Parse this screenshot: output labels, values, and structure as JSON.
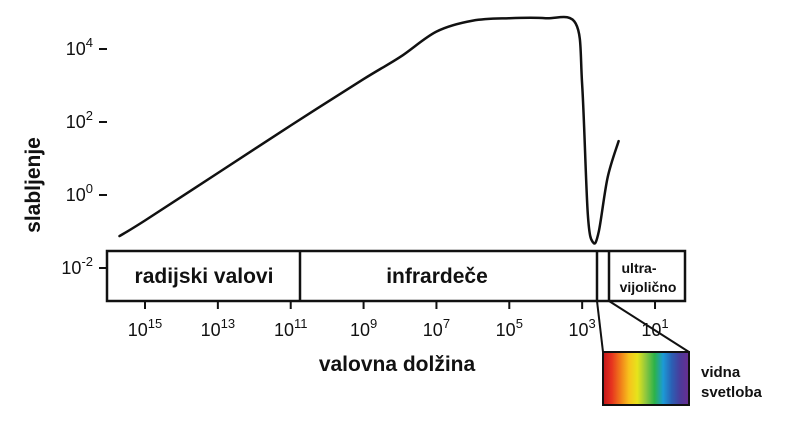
{
  "chart_data": {
    "type": "line",
    "title": "",
    "xlabel": "valovna dolžina",
    "ylabel": "slabljenje",
    "x_scale": "log",
    "y_scale": "log",
    "x_reversed": true,
    "y_ticks": [
      {
        "base": "10",
        "exp": "4",
        "value": 10000
      },
      {
        "base": "10",
        "exp": "2",
        "value": 100
      },
      {
        "base": "10",
        "exp": "0",
        "value": 1
      },
      {
        "base": "10",
        "exp": "-2",
        "value": 0.01
      }
    ],
    "x_ticks": [
      {
        "base": "10",
        "exp": "15",
        "value": 1000000000000000.0
      },
      {
        "base": "10",
        "exp": "13",
        "value": 10000000000000.0
      },
      {
        "base": "10",
        "exp": "11",
        "value": 100000000000.0
      },
      {
        "base": "10",
        "exp": "9",
        "value": 1000000000.0
      },
      {
        "base": "10",
        "exp": "7",
        "value": 10000000.0
      },
      {
        "base": "10",
        "exp": "5",
        "value": 100000.0
      },
      {
        "base": "10",
        "exp": "3",
        "value": 1000.0
      },
      {
        "base": "10",
        "exp": "1",
        "value": 10
      }
    ],
    "series": [
      {
        "points": [
          [
            5000000000000000.0,
            0.075
          ],
          [
            1000000000000000.0,
            0.2
          ],
          [
            10000000000000.0,
            4
          ],
          [
            100000000000.0,
            80
          ],
          [
            1000000000.0,
            1500
          ],
          [
            100000000.0,
            6000
          ],
          [
            10000000.0,
            30000
          ],
          [
            1000000.0,
            60000
          ],
          [
            100000.0,
            70000
          ],
          [
            10000.0,
            70000
          ],
          [
            1500.0,
            50000
          ],
          [
            1000.0,
            1000
          ],
          [
            700,
            0.3
          ],
          [
            500,
            0.05
          ],
          [
            350,
            0.1
          ],
          [
            200,
            3
          ],
          [
            100,
            30
          ]
        ]
      }
    ],
    "bands": [
      {
        "label": "radijski valovi"
      },
      {
        "label": "infrardeče"
      },
      {
        "label_lines": [
          "ultra-",
          "vijolično"
        ]
      }
    ],
    "inset": {
      "label_lines": [
        "vidna",
        "svetloba"
      ],
      "colors": [
        "#c2161b",
        "#e6331f",
        "#f07a1a",
        "#f7c11c",
        "#e6e41b",
        "#8dc63f",
        "#2bb24a",
        "#1c9ad6",
        "#2b5fb4",
        "#4b3a9a",
        "#6a2c91"
      ]
    }
  }
}
